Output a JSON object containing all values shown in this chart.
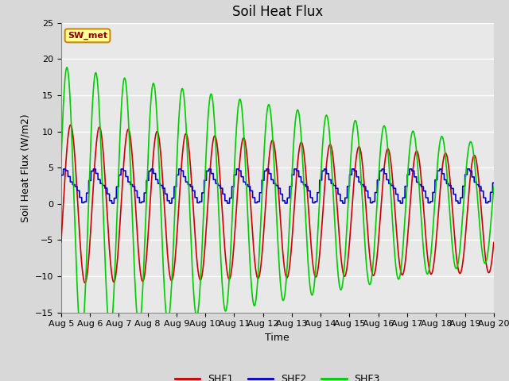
{
  "title": "Soil Heat Flux",
  "ylabel": "Soil Heat Flux (W/m2)",
  "xlabel": "Time",
  "ylim": [
    -15,
    25
  ],
  "fig_bg_color": "#d8d8d8",
  "plot_bg_color": "#e8e8e8",
  "shf1_color": "#cc0000",
  "shf2_color": "#0000cc",
  "shf3_color": "#00cc00",
  "legend_box_facecolor": "#ffff99",
  "legend_box_edgecolor": "#cc8800",
  "legend_box_text": "SW_met",
  "legend_entries": [
    "SHF1",
    "SHF2",
    "SHF3"
  ],
  "yticks": [
    -15,
    -10,
    -5,
    0,
    5,
    10,
    15,
    20,
    25
  ],
  "xtick_labels": [
    "Aug 5",
    "Aug 6",
    "Aug 7",
    "Aug 8",
    "Aug 9",
    "Aug 10",
    "Aug 11",
    "Aug 12",
    "Aug 13",
    "Aug 14",
    "Aug 15",
    "Aug 16",
    "Aug 17",
    "Aug 18",
    "Aug 19",
    "Aug 20"
  ],
  "title_fontsize": 12,
  "axis_label_fontsize": 9,
  "tick_fontsize": 8,
  "linewidth": 1.2
}
